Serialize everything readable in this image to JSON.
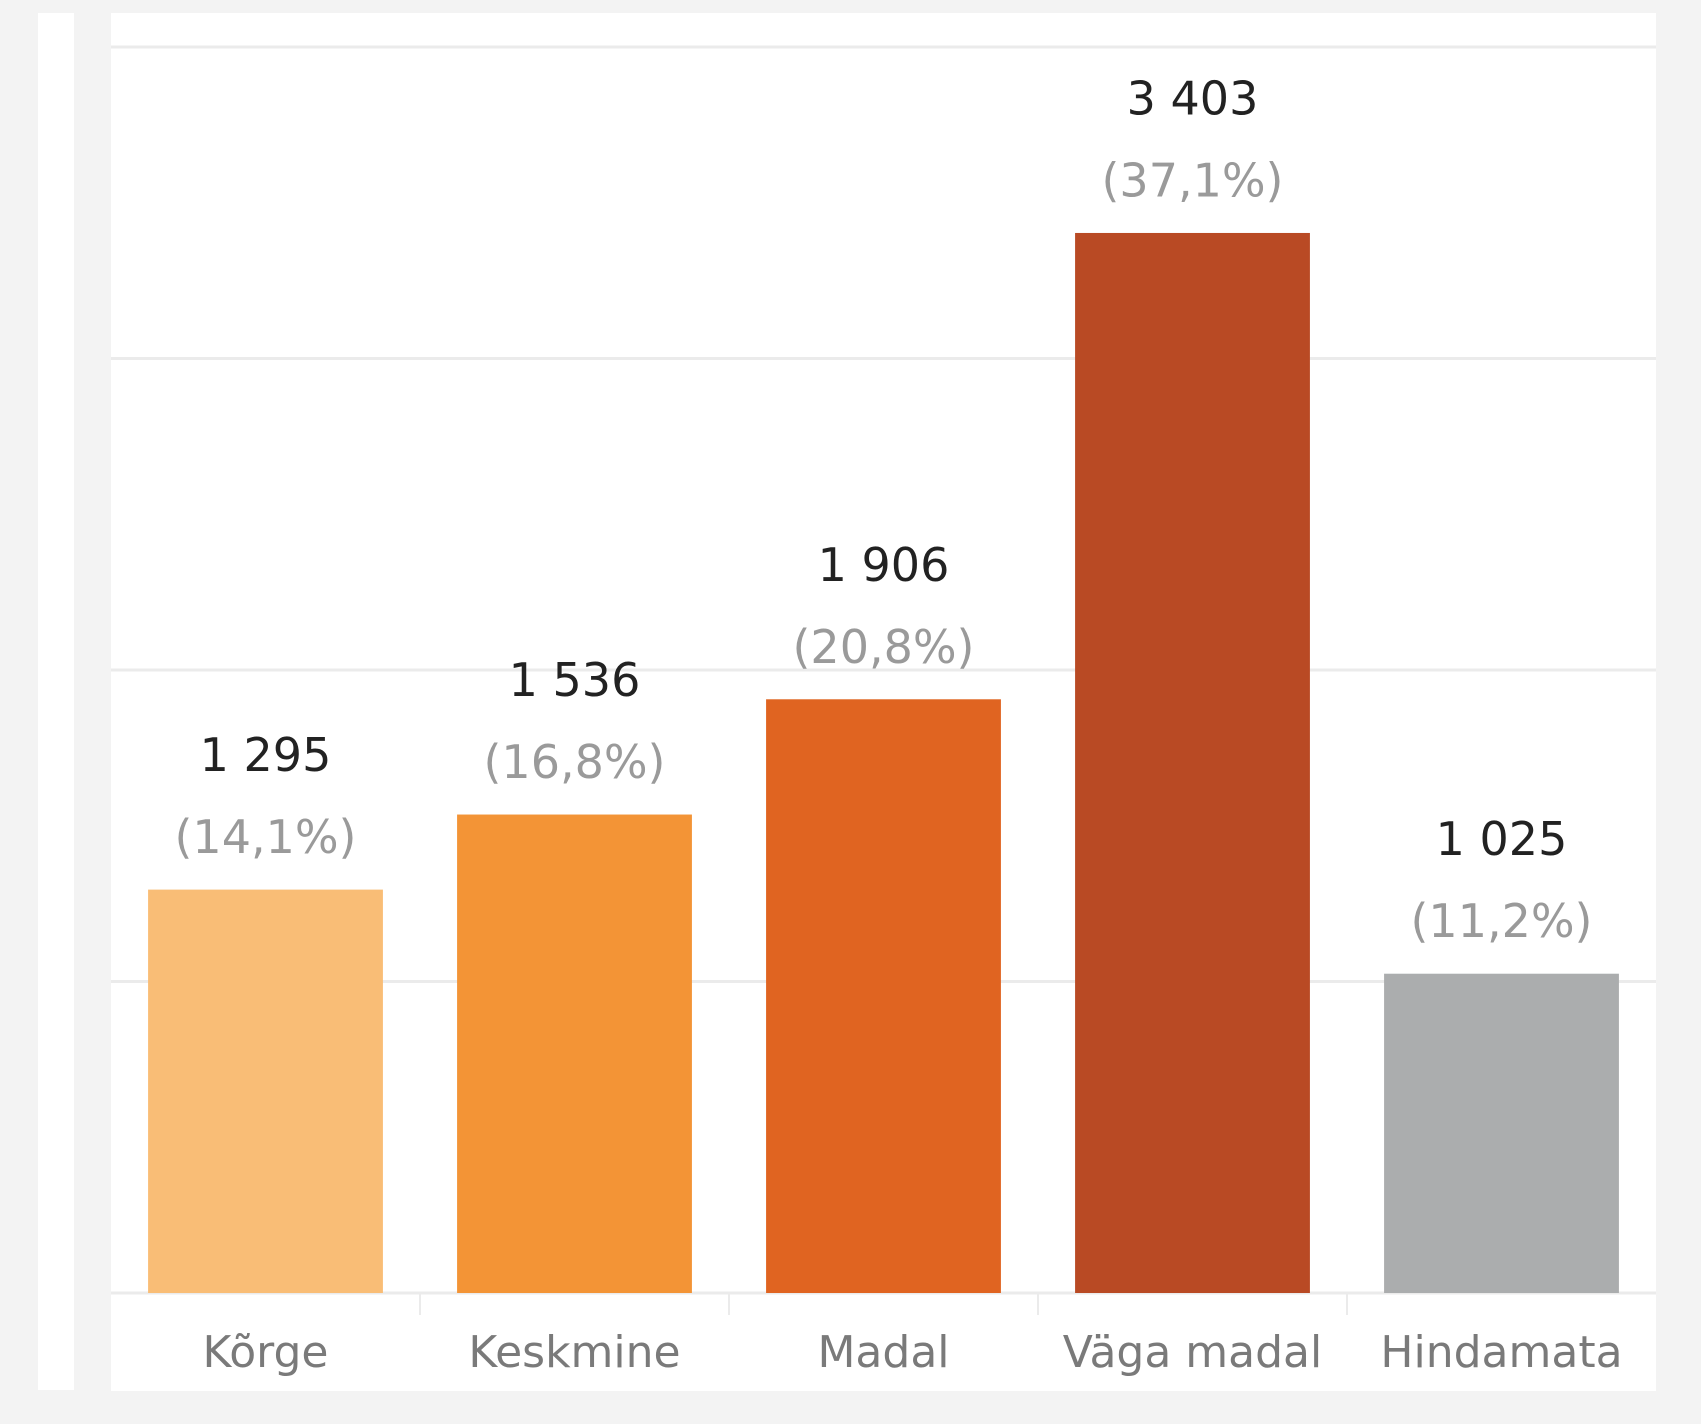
{
  "chart_data": {
    "type": "bar",
    "categories": [
      "Kõrge",
      "Keskmine",
      "Madal",
      "Väga madal",
      "Hindamata"
    ],
    "values": [
      1295,
      1536,
      1906,
      3403,
      1025
    ],
    "value_labels": [
      "1 295",
      "1 536",
      "1 906",
      "3 403",
      "1 025"
    ],
    "percent_values": [
      14.1,
      16.8,
      20.8,
      37.1,
      11.2
    ],
    "percent_labels": [
      "(14,1%)",
      "(16,8%)",
      "(20,8%)",
      "(37,1%)",
      "(11,2%)"
    ],
    "colors": [
      "#f9bd76",
      "#f39436",
      "#e06421",
      "#b94a24",
      "#abadae"
    ],
    "ylim": [
      0,
      4000
    ],
    "yticks": [
      0,
      1000,
      2000,
      3000,
      4000
    ],
    "grid": true
  }
}
